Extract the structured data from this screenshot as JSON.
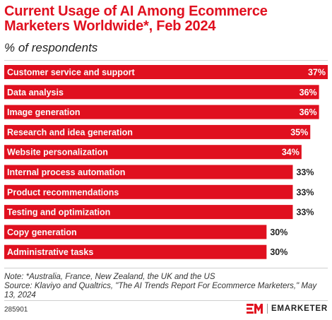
{
  "chart_data": {
    "type": "bar",
    "orientation": "horizontal",
    "title": "Current Usage of AI Among Ecommerce Marketers Worldwide*, Feb 2024",
    "subtitle": "% of respondents",
    "categories": [
      "Customer service and support",
      "Data analysis",
      "Image generation",
      "Research and idea generation",
      "Website personalization",
      "Internal process automation",
      "Product recommendations",
      "Testing and optimization",
      "Copy generation",
      "Administrative tasks"
    ],
    "values": [
      37,
      36,
      36,
      35,
      34,
      33,
      33,
      33,
      30,
      30
    ],
    "value_labels": [
      "37%",
      "36%",
      "36%",
      "35%",
      "34%",
      "33%",
      "33%",
      "33%",
      "30%",
      "30%"
    ],
    "bar_color": "#e0101f",
    "xlim": [
      0,
      37
    ],
    "grid": false,
    "legend": "none"
  },
  "note": "Note: *Australia, France, New Zealand, the UK and the US",
  "source": "Source: Klaviyo and Qualtrics, \"The AI Trends Report For Ecommerce Marketers,\" May 13, 2024",
  "chart_id": "285901",
  "brand": {
    "name": "EMARKETER",
    "logo_icon": "em-logo-icon",
    "color": "#e0101f"
  }
}
